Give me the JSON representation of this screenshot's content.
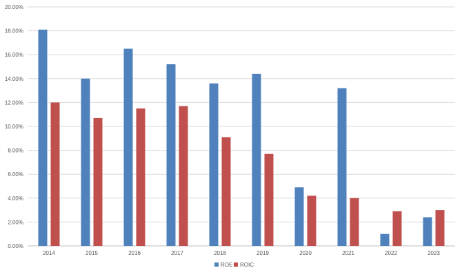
{
  "chart_data": {
    "type": "bar",
    "title": "",
    "xlabel": "",
    "ylabel": "",
    "categories": [
      "2014",
      "2015",
      "2016",
      "2017",
      "2018",
      "2019",
      "2020",
      "2021",
      "2022",
      "2023"
    ],
    "series": [
      {
        "name": "ROE",
        "color": "#4F81BD",
        "values": [
          18.1,
          14.0,
          16.5,
          15.2,
          13.6,
          14.4,
          4.9,
          13.2,
          1.0,
          2.4
        ]
      },
      {
        "name": "ROIC",
        "color": "#C0504D",
        "values": [
          12.0,
          10.7,
          11.5,
          11.7,
          9.1,
          7.7,
          4.2,
          4.0,
          2.9,
          3.0
        ]
      }
    ],
    "ylim": [
      0,
      20
    ],
    "yticks": [
      "0.00%",
      "2.00%",
      "4.00%",
      "6.00%",
      "8.00%",
      "10.00%",
      "12.00%",
      "14.00%",
      "16.00%",
      "18.00%",
      "20.00%"
    ],
    "grid": true,
    "legend_position": "bottom"
  }
}
